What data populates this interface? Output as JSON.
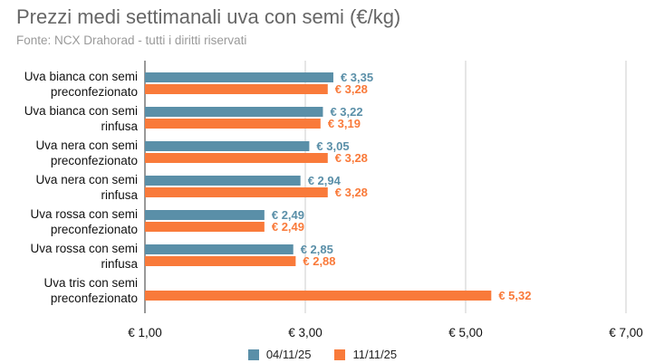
{
  "chart_data": {
    "type": "bar",
    "orientation": "horizontal",
    "title": "Prezzi medi settimanali uva con semi (€/kg)",
    "subtitle": "Fonte: NCX Drahorad - tutti i diritti riservati",
    "categories": [
      [
        "Uva bianca con semi",
        "preconfezionato"
      ],
      [
        "Uva bianca con semi",
        "rinfusa"
      ],
      [
        "Uva nera con semi",
        "preconfezionato"
      ],
      [
        "Uva nera con semi",
        "rinfusa"
      ],
      [
        "Uva rossa con semi",
        "preconfezionato"
      ],
      [
        "Uva rossa con semi",
        "rinfusa"
      ],
      [
        "Uva tris con semi",
        "preconfezionato"
      ]
    ],
    "series": [
      {
        "name": "04/11/25",
        "color": "#5a8fa8",
        "values": [
          3.35,
          3.22,
          3.05,
          2.94,
          2.49,
          2.85,
          null
        ],
        "labels": [
          "€ 3,35",
          "€ 3,22",
          "€ 3,05",
          "€ 2,94",
          "€ 2,49",
          "€ 2,85",
          ""
        ]
      },
      {
        "name": "11/11/25",
        "color": "#f97a3a",
        "values": [
          3.28,
          3.19,
          3.28,
          3.28,
          2.49,
          2.88,
          5.32
        ],
        "labels": [
          "€ 3,28",
          "€ 3,19",
          "€ 3,28",
          "€ 3,28",
          "€ 2,49",
          "€ 2,88",
          "€ 5,32"
        ]
      }
    ],
    "xlim": [
      1,
      7
    ],
    "ticks": [
      1,
      3,
      5,
      7
    ],
    "tick_labels": [
      "€ 1,00",
      "€ 3,00",
      "€ 5,00",
      "€ 7,00"
    ],
    "grid": true,
    "legend_position": "bottom-center"
  }
}
